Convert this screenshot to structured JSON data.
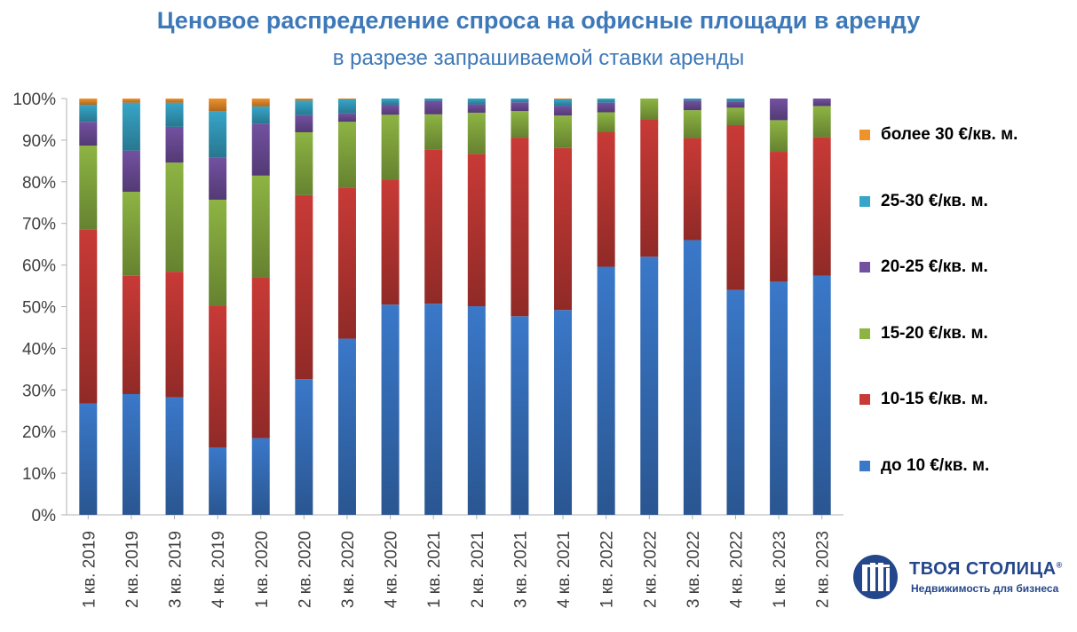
{
  "title": "Ценовое распределение спроса на офисные площади в аренду",
  "subtitle": "в разрезе запрашиваемой ставки аренды",
  "logo": {
    "name": "ТВОЯ СТОЛИЦА",
    "mark": "®",
    "tagline": "Недвижимость для бизнеса"
  },
  "chart_data": {
    "type": "bar",
    "stacked": true,
    "percent_stacked": true,
    "categories": [
      "1 кв. 2019",
      "2 кв. 2019",
      "3 кв. 2019",
      "4 кв. 2019",
      "1 кв. 2020",
      "2 кв. 2020",
      "3 кв. 2020",
      "4 кв. 2020",
      "1 кв. 2021",
      "2 кв. 2021",
      "3 кв. 2021",
      "4 кв. 2021",
      "1 кв. 2022",
      "2 кв. 2022",
      "3 кв. 2022",
      "4 кв. 2022",
      "1 кв. 2023",
      "2 кв. 2023"
    ],
    "y_ticks": [
      "0%",
      "10%",
      "20%",
      "30%",
      "40%",
      "50%",
      "60%",
      "70%",
      "80%",
      "90%",
      "100%"
    ],
    "ylim": [
      0,
      100
    ],
    "grid": false,
    "legend_position": "right",
    "series": [
      {
        "name": "до 10 €/кв. м.",
        "color": "#3a78c9",
        "values": [
          26.7,
          29,
          28.2,
          16.2,
          18.4,
          32.6,
          42.4,
          50.5,
          50.7,
          50.1,
          47.7,
          49.2,
          59.6,
          62,
          66,
          54,
          56,
          57.4
        ]
      },
      {
        "name": "10-15 €/кв. м.",
        "color": "#c83a36",
        "values": [
          41.9,
          28.4,
          30.2,
          34.1,
          38.6,
          44.2,
          36.4,
          30,
          37.1,
          36.6,
          42.9,
          38.9,
          32.3,
          33,
          24.5,
          39.6,
          31.2,
          33.3
        ]
      },
      {
        "name": "15-20 €/кв. м.",
        "color": "#8db443",
        "values": [
          20.1,
          20.2,
          26.2,
          25.4,
          24.4,
          15.1,
          15.8,
          15.6,
          8.4,
          9.9,
          6.4,
          7.8,
          4.8,
          5,
          6.7,
          4.2,
          7.6,
          7.5
        ]
      },
      {
        "name": "20-25 €/кв. м.",
        "color": "#7351a1",
        "values": [
          5.7,
          9.9,
          8.6,
          10.2,
          12.5,
          4.1,
          2,
          2.4,
          3.2,
          2,
          2.1,
          2.3,
          2.3,
          0,
          2.3,
          1.5,
          5.2,
          1.8
        ]
      },
      {
        "name": "25-30 €/кв. м.",
        "color": "#37a5c8",
        "values": [
          4.1,
          11.5,
          5.8,
          11.1,
          4.1,
          3.5,
          3.4,
          1.5,
          0.6,
          1.4,
          0.9,
          1.6,
          1,
          0,
          0.5,
          0.7,
          0,
          0
        ]
      },
      {
        "name": "более 30 €/кв. м.",
        "color": "#f0922c",
        "values": [
          1.5,
          1,
          1,
          3,
          1.9,
          0.5,
          0.2,
          0,
          0,
          0,
          0,
          0.2,
          0,
          0,
          0,
          0,
          0,
          0
        ]
      }
    ]
  }
}
